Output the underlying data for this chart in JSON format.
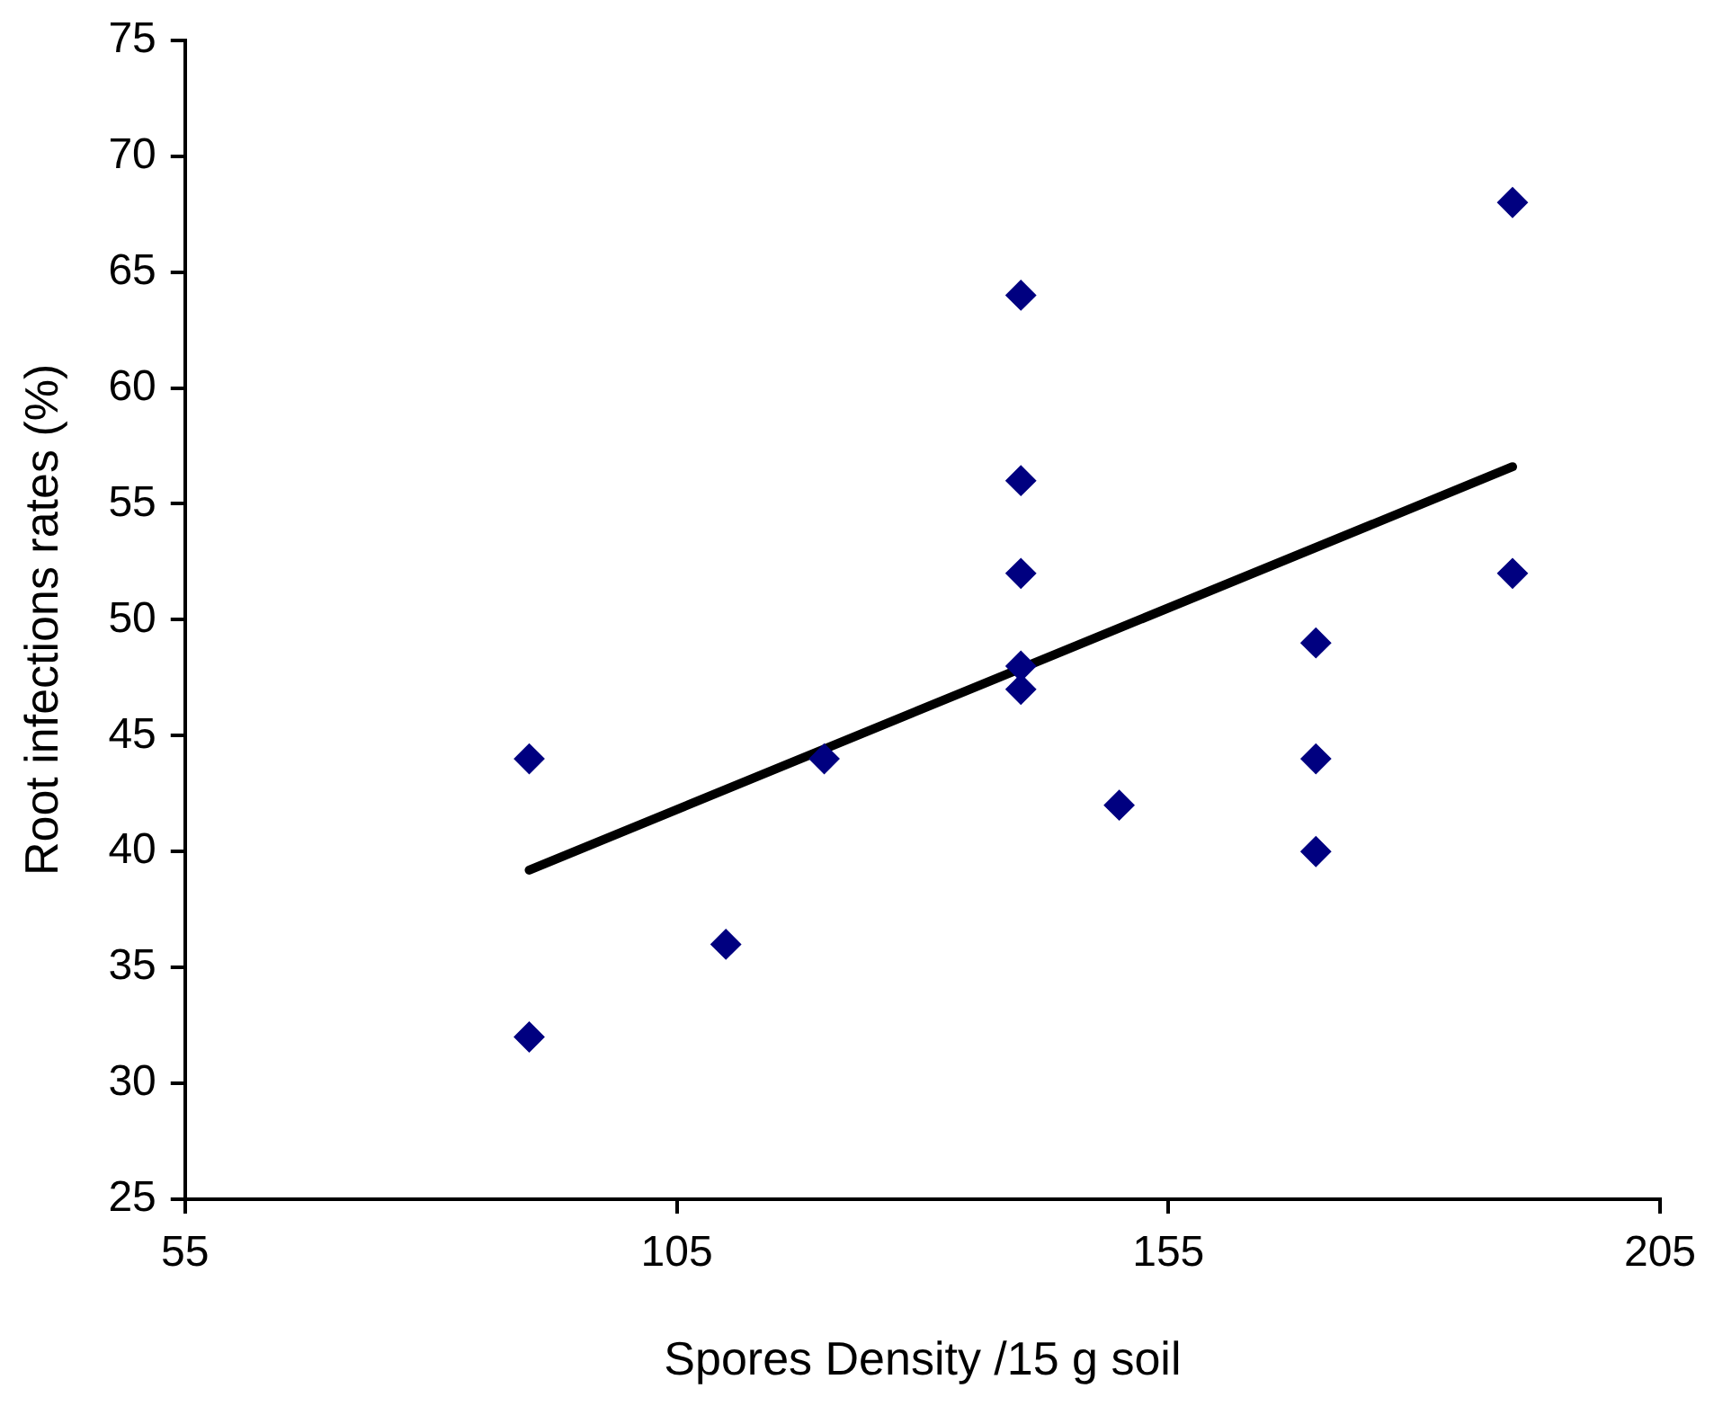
{
  "chart_data": {
    "type": "scatter",
    "xlabel": "Spores Density /15 g soil",
    "ylabel": "Root infections rates (%)",
    "xlim": [
      55,
      205
    ],
    "xticks": [
      55,
      105,
      155,
      205
    ],
    "ylim": [
      25,
      75
    ],
    "yticks": [
      25,
      30,
      35,
      40,
      45,
      50,
      55,
      60,
      65,
      70,
      75
    ],
    "grid": false,
    "legend": false,
    "series": [
      {
        "color": "#000080",
        "marker": "diamond",
        "x": [
          90,
          90,
          110,
          120,
          140,
          140,
          140,
          140,
          140,
          150,
          170,
          170,
          170,
          190,
          190
        ],
        "values": [
          44,
          32,
          36,
          44,
          64,
          56,
          52,
          48,
          47,
          42,
          49,
          44,
          40,
          68,
          52
        ]
      },
      {
        "type": "line",
        "color": "#000000",
        "x": [
          90,
          190
        ],
        "values": [
          39.2,
          56.6
        ]
      }
    ]
  }
}
